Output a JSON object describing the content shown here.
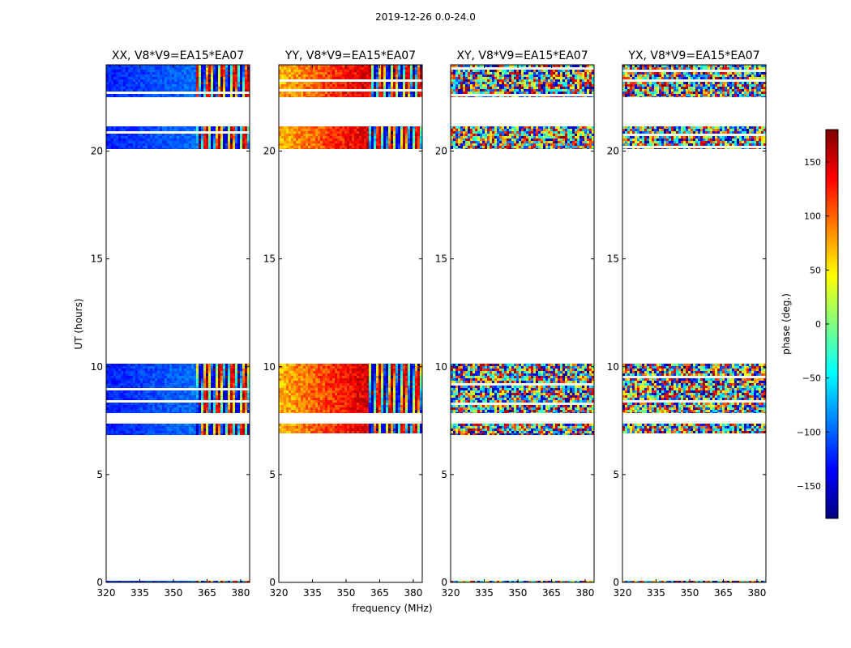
{
  "chart_data": {
    "type": "heatmap",
    "suptitle": "2019-12-26 0.0-24.0",
    "xlabel": "frequency (MHz)",
    "ylabel": "UT (hours)",
    "xlim": [
      320,
      384
    ],
    "ylim": [
      0,
      24
    ],
    "xticks": [
      "320",
      "335",
      "350",
      "365",
      "380"
    ],
    "yticks": [
      "0",
      "5",
      "10",
      "15",
      "20"
    ],
    "value_label": "phase (deg.)",
    "value_range": [
      -180,
      180
    ],
    "colorbar_ticks": [
      "150",
      "100",
      "50",
      "0",
      "−50",
      "−100",
      "−150"
    ],
    "colormap": [
      "#00007f",
      "#0000ff",
      "#0080ff",
      "#00ffff",
      "#80ff80",
      "#ffff00",
      "#ff8000",
      "#ff0000",
      "#7f0000"
    ],
    "data_time_ranges_hours": [
      [
        0.0,
        0.08
      ],
      [
        6.85,
        7.35
      ],
      [
        7.85,
        10.15
      ],
      [
        20.1,
        21.15
      ],
      [
        22.5,
        24.0
      ]
    ],
    "band_split_mhz": 360,
    "panels": [
      {
        "title": "XX, V8*V9=EA15*EA07",
        "phase_low_deg": -125,
        "phase_high_deg": -95,
        "spread_deg": 15,
        "wrap_right": false
      },
      {
        "title": "YY, V8*V9=EA15*EA07",
        "phase_low_deg": 70,
        "phase_high_deg": 150,
        "spread_deg": 25,
        "wrap_right": true
      },
      {
        "title": "XY, V8*V9=EA15*EA07",
        "noise": true
      },
      {
        "title": "YX, V8*V9=EA15*EA07",
        "noise": true
      }
    ]
  }
}
